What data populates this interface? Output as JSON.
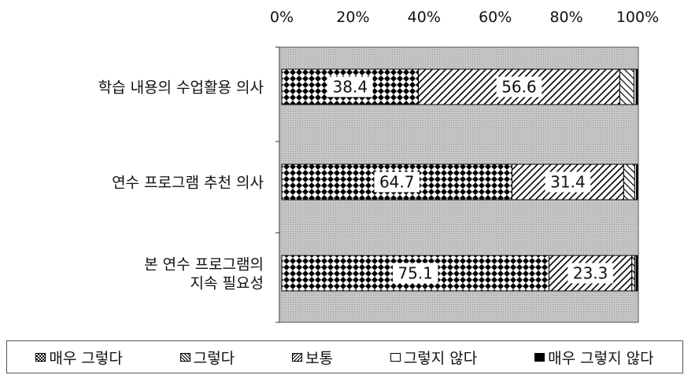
{
  "chart_data": {
    "type": "bar",
    "orientation": "horizontal",
    "stacked": true,
    "percent_axis": true,
    "xlim": [
      0,
      100
    ],
    "xticks": [
      "0%",
      "20%",
      "40%",
      "60%",
      "80%",
      "100%"
    ],
    "categories": [
      [
        "학습 내용의 수업활용 의사"
      ],
      [
        "연수 프로그램 추천 의사"
      ],
      [
        "본 연수 프로그램의",
        "지속 필요성"
      ]
    ],
    "series": [
      {
        "name": "매우 그렇다",
        "values": [
          38.4,
          64.7,
          75.1
        ],
        "labels": [
          "38.4",
          "64.7",
          "75.1"
        ]
      },
      {
        "name": "그렇다",
        "values": [
          56.6,
          31.4,
          23.3
        ],
        "labels": [
          "56.6",
          "31.4",
          "23.3"
        ]
      },
      {
        "name": "보통",
        "values": [
          4.0,
          3.1,
          0.8
        ],
        "labels": [
          "",
          "",
          ""
        ]
      },
      {
        "name": "그렇지 않다",
        "values": [
          0.6,
          0.5,
          0.4
        ],
        "labels": [
          "",
          "",
          ""
        ]
      },
      {
        "name": "매우 그렇지 않다",
        "values": [
          0.4,
          0.3,
          0.4
        ],
        "labels": [
          "",
          "",
          ""
        ]
      }
    ],
    "legend_position": "bottom",
    "grid": false,
    "plot_background": "#bdbdbd"
  }
}
